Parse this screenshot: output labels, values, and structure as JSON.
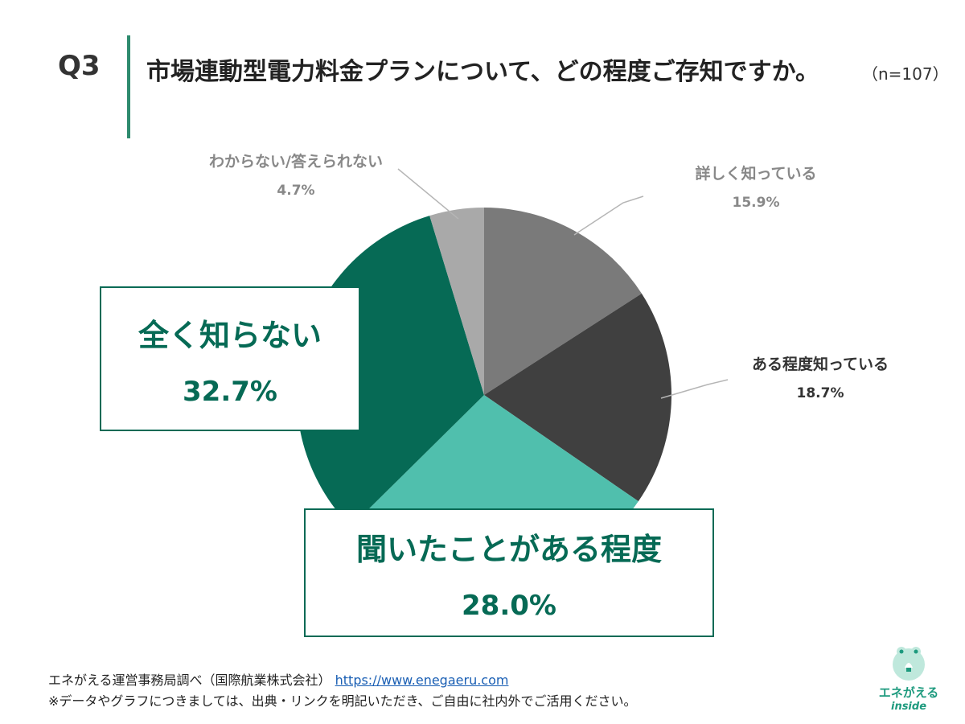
{
  "header": {
    "q_label": "Q3",
    "question": "市場連動型電力料金プランについて、どの程度ご存知ですか。",
    "sample": "（n=107）"
  },
  "colors": {
    "accent": "#2e8b6e",
    "box_green": "#066a55",
    "detailed": "#7a7a7a",
    "somewhat": "#404040",
    "heard": "#50bfad",
    "not_know": "#066a55",
    "dont_know": "#a9a9a9"
  },
  "chart_data": {
    "type": "pie",
    "title": "市場連動型電力料金プランについて、どの程度ご存知ですか。",
    "start": "12 o'clock, clockwise",
    "slices": [
      {
        "label": "詳しく知っている",
        "value": 15.9,
        "display": "15.9%"
      },
      {
        "label": "ある程度知っている",
        "value": 18.7,
        "display": "18.7%"
      },
      {
        "label": "聞いたことがある程度",
        "value": 28.0,
        "display": "28.0%"
      },
      {
        "label": "全く知らない",
        "value": 32.7,
        "display": "32.7%"
      },
      {
        "label": "わからない/答えられない",
        "value": 4.7,
        "display": "4.7%"
      }
    ]
  },
  "footer": {
    "source": "エネがえる運営事務局調べ（国際航業株式会社）",
    "url": "https://www.enegaeru.com",
    "note": "※データやグラフにつきましては、出典・リンクを明記いただき、ご自由に社内外でご活用ください。"
  },
  "logo": {
    "name": "エネがえる",
    "sub": "inside"
  }
}
